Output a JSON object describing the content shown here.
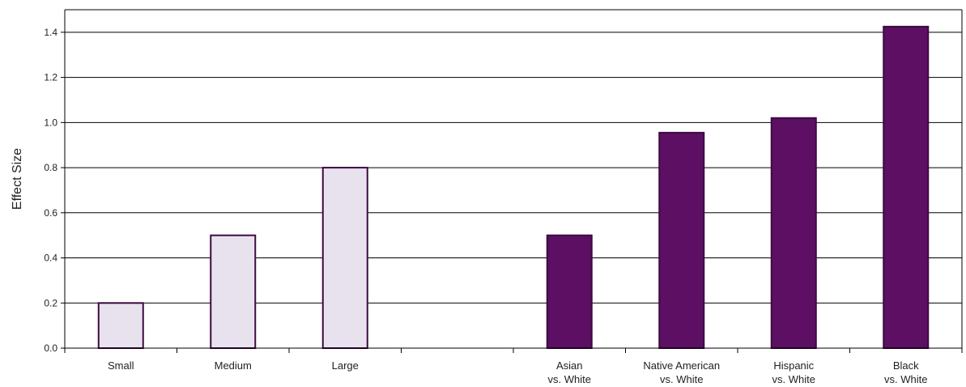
{
  "chart_data": {
    "type": "bar",
    "title": "",
    "xlabel": "",
    "ylabel": "Effect Size",
    "ylim": [
      0,
      1.5
    ],
    "yticks": [
      "0.0",
      "0.2",
      "0.4",
      "0.6",
      "0.8",
      "1.0",
      "1.2",
      "1.4"
    ],
    "grid": true,
    "legend": "none",
    "categories": [
      [
        "Small"
      ],
      [
        "Medium"
      ],
      [
        "Large"
      ],
      [
        ""
      ],
      [
        "Asian",
        "vs. White"
      ],
      [
        "Native American",
        "vs. White"
      ],
      [
        "Hispanic",
        "vs. White"
      ],
      [
        "Black",
        "vs. White"
      ]
    ],
    "values": [
      0.2,
      0.5,
      0.8,
      null,
      0.5,
      0.955,
      1.02,
      1.425
    ],
    "bar_colors": [
      "#e8e2ef",
      "#e8e2ef",
      "#e8e2ef",
      null,
      "#5c0f63",
      "#5c0f63",
      "#5c0f63",
      "#5c0f63"
    ],
    "bar_outline": "#3d0a42"
  }
}
